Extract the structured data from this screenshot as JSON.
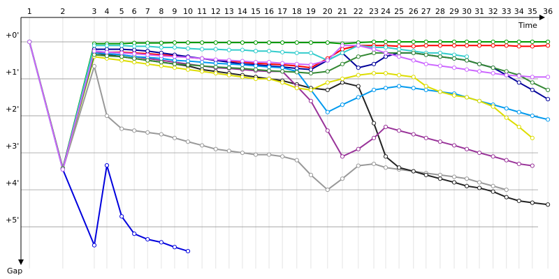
{
  "chart_data": {
    "type": "line",
    "x_label": "Time",
    "y_label": "Gap",
    "x": [
      0.23,
      1.13,
      1.98,
      2.32,
      2.72,
      3.06,
      3.42,
      3.79,
      4.15,
      4.51,
      4.89,
      5.26,
      5.62,
      5.98,
      6.34,
      6.7,
      7.06,
      7.45,
      7.83,
      8.28,
      8.68,
      9.11,
      9.53,
      9.85,
      10.21,
      10.6,
      10.94,
      11.32,
      11.7,
      12.04,
      12.38,
      12.75,
      13.11,
      13.45,
      13.81,
      14.23
    ],
    "xlim": [
      0,
      14.53
    ],
    "xticks": [
      {
        "value": 0.23,
        "label": "1"
      },
      {
        "value": 1.13,
        "label": "2"
      },
      {
        "value": 1.98,
        "label": "3"
      },
      {
        "value": 2.32,
        "label": "4"
      },
      {
        "value": 2.72,
        "label": "5"
      },
      {
        "value": 3.06,
        "label": "6"
      },
      {
        "value": 3.42,
        "label": "7"
      },
      {
        "value": 3.79,
        "label": "8"
      },
      {
        "value": 4.15,
        "label": "9"
      },
      {
        "value": 4.51,
        "label": "10"
      },
      {
        "value": 4.89,
        "label": "11"
      },
      {
        "value": 5.26,
        "label": "12"
      },
      {
        "value": 5.62,
        "label": "13"
      },
      {
        "value": 5.98,
        "label": "14"
      },
      {
        "value": 6.34,
        "label": "15"
      },
      {
        "value": 6.7,
        "label": "16"
      },
      {
        "value": 7.06,
        "label": "17"
      },
      {
        "value": 7.45,
        "label": "18"
      },
      {
        "value": 7.83,
        "label": "19"
      },
      {
        "value": 8.28,
        "label": "20"
      },
      {
        "value": 8.68,
        "label": "21"
      },
      {
        "value": 9.11,
        "label": "22"
      },
      {
        "value": 9.53,
        "label": "23"
      },
      {
        "value": 9.85,
        "label": "24"
      },
      {
        "value": 10.21,
        "label": "25"
      },
      {
        "value": 10.6,
        "label": "26"
      },
      {
        "value": 10.94,
        "label": "27"
      },
      {
        "value": 11.32,
        "label": "28"
      },
      {
        "value": 11.7,
        "label": "29"
      },
      {
        "value": 12.04,
        "label": "30"
      },
      {
        "value": 12.38,
        "label": "31"
      },
      {
        "value": 12.75,
        "label": "32"
      },
      {
        "value": 13.11,
        "label": "33"
      },
      {
        "value": 13.45,
        "label": "34"
      },
      {
        "value": 13.81,
        "label": "35"
      },
      {
        "value": 14.23,
        "label": "36"
      }
    ],
    "ylim": [
      6.13,
      -0.66
    ],
    "yticks": [
      {
        "value": 0,
        "label": "+0'"
      },
      {
        "value": 1,
        "label": "+1'"
      },
      {
        "value": 2,
        "label": "+2'"
      },
      {
        "value": 3,
        "label": "+3'"
      },
      {
        "value": 4,
        "label": "+4'"
      },
      {
        "value": 5,
        "label": "+5'"
      }
    ],
    "grid": true,
    "series": [
      {
        "color": "#009900",
        "values": [
          0,
          3.42,
          0.05,
          0.05,
          0.05,
          0.03,
          0.03,
          0.03,
          0.02,
          0.02,
          0.02,
          0.02,
          0.02,
          0.02,
          0.02,
          0.02,
          0.02,
          0.02,
          0.02,
          0.02,
          0.05,
          0.02,
          0,
          0,
          0,
          0,
          0,
          0,
          0,
          0,
          0,
          0,
          0,
          0,
          0,
          0
        ]
      },
      {
        "color": "#ff0000",
        "values": [
          0,
          3.45,
          0.3,
          0.28,
          0.28,
          0.3,
          0.32,
          0.35,
          0.38,
          0.42,
          0.45,
          0.5,
          0.52,
          0.55,
          0.58,
          0.6,
          0.62,
          0.65,
          0.7,
          0.45,
          0.2,
          0.1,
          0.1,
          0.1,
          0.12,
          0.12,
          0.1,
          0.1,
          0.1,
          0.1,
          0.1,
          0.1,
          0.1,
          0.12,
          0.12,
          0.1
        ]
      },
      {
        "color": "#000099",
        "values": [
          0,
          3.42,
          0.2,
          0.2,
          0.2,
          0.22,
          0.25,
          0.3,
          0.35,
          0.4,
          0.45,
          0.5,
          0.55,
          0.6,
          0.62,
          0.65,
          0.68,
          0.72,
          0.75,
          0.5,
          0.3,
          0.7,
          0.6,
          0.4,
          0.3,
          0.3,
          0.35,
          0.4,
          0.45,
          0.5,
          0.6,
          0.7,
          0.9,
          1.1,
          1.3,
          1.55
        ]
      },
      {
        "color": "#0000dd",
        "values": [
          0,
          3.45,
          5.5,
          3.34,
          4.72,
          5.19,
          5.34,
          5.42,
          5.55,
          5.66,
          null,
          null,
          null,
          null,
          null,
          null,
          null,
          null,
          null,
          null,
          null,
          null,
          null,
          null,
          null,
          null,
          null,
          null,
          null,
          null,
          null,
          null,
          null,
          null,
          null,
          null
        ]
      },
      {
        "color": "#999999",
        "values": [
          0,
          3.45,
          0.66,
          2.0,
          2.35,
          2.4,
          2.45,
          2.5,
          2.6,
          2.7,
          2.8,
          2.9,
          2.95,
          3.0,
          3.05,
          3.05,
          3.1,
          3.2,
          3.6,
          4.0,
          3.7,
          3.35,
          3.3,
          3.4,
          3.45,
          3.5,
          3.55,
          3.6,
          3.65,
          3.7,
          3.8,
          3.9,
          4.0,
          null,
          null,
          null
        ]
      },
      {
        "color": "#222222",
        "values": [
          0,
          3.42,
          0.3,
          0.35,
          0.4,
          0.45,
          0.5,
          0.55,
          0.6,
          0.65,
          0.75,
          0.8,
          0.85,
          0.9,
          0.95,
          1.0,
          1.05,
          1.15,
          1.25,
          1.3,
          1.1,
          1.2,
          2.2,
          3.1,
          3.4,
          3.5,
          3.6,
          3.7,
          3.8,
          3.9,
          3.95,
          4.05,
          4.2,
          4.3,
          4.35,
          4.4
        ]
      },
      {
        "color": "#993399",
        "values": [
          0,
          3.42,
          0.3,
          0.32,
          0.35,
          0.4,
          0.45,
          0.5,
          0.55,
          0.6,
          0.65,
          0.7,
          0.72,
          0.75,
          0.78,
          0.8,
          0.8,
          1.2,
          1.6,
          2.4,
          3.1,
          2.9,
          2.6,
          2.3,
          2.4,
          2.5,
          2.6,
          2.7,
          2.8,
          2.9,
          3.0,
          3.1,
          3.2,
          3.3,
          3.35,
          null
        ]
      },
      {
        "color": "#0099ee",
        "values": [
          0,
          3.42,
          0.3,
          0.32,
          0.35,
          0.4,
          0.42,
          0.45,
          0.5,
          0.52,
          0.55,
          0.58,
          0.6,
          0.62,
          0.65,
          0.68,
          0.7,
          0.8,
          1.3,
          1.9,
          1.7,
          1.5,
          1.3,
          1.25,
          1.2,
          1.25,
          1.3,
          1.35,
          1.4,
          1.5,
          1.6,
          1.7,
          1.8,
          1.9,
          2.0,
          2.1
        ]
      },
      {
        "color": "#dddd00",
        "values": [
          0,
          3.42,
          0.4,
          0.45,
          0.5,
          0.55,
          0.6,
          0.65,
          0.7,
          0.75,
          0.8,
          0.85,
          0.9,
          0.95,
          1.0,
          1.0,
          1.1,
          1.25,
          1.3,
          1.1,
          1.0,
          0.9,
          0.85,
          0.85,
          0.9,
          0.95,
          1.2,
          1.35,
          1.45,
          1.5,
          1.6,
          1.75,
          2.05,
          2.3,
          2.6,
          null
        ]
      },
      {
        "color": "#33cccc",
        "values": [
          0,
          3.45,
          0.1,
          0.1,
          0.1,
          0.12,
          0.12,
          0.15,
          0.15,
          0.18,
          0.2,
          0.2,
          0.22,
          0.22,
          0.25,
          0.25,
          0.28,
          0.3,
          0.3,
          0.5,
          0.3,
          0.1,
          0.15,
          0.15,
          0.2,
          0.25,
          0.3,
          0.3,
          0.35,
          0.4,
          null,
          null,
          null,
          null,
          null,
          null
        ]
      },
      {
        "color": "#338833",
        "values": [
          0,
          3.42,
          0.35,
          0.38,
          0.4,
          0.45,
          0.5,
          0.55,
          0.6,
          0.62,
          0.65,
          0.68,
          0.7,
          0.72,
          0.75,
          0.78,
          0.8,
          0.82,
          0.85,
          0.8,
          0.6,
          0.4,
          0.3,
          0.3,
          0.3,
          0.3,
          0.35,
          0.4,
          0.45,
          0.5,
          0.6,
          0.7,
          0.8,
          0.9,
          1.1,
          1.3
        ]
      },
      {
        "color": "#cc66ff",
        "values": [
          0,
          3.45,
          0.25,
          0.28,
          0.3,
          0.32,
          0.35,
          0.38,
          0.4,
          0.42,
          0.45,
          0.48,
          0.5,
          0.52,
          0.55,
          0.55,
          0.58,
          0.6,
          0.62,
          0.5,
          0.1,
          0.1,
          0.2,
          0.3,
          0.4,
          0.5,
          0.6,
          0.65,
          0.7,
          0.75,
          0.8,
          0.85,
          0.9,
          0.92,
          0.95,
          0.95
        ]
      }
    ]
  }
}
